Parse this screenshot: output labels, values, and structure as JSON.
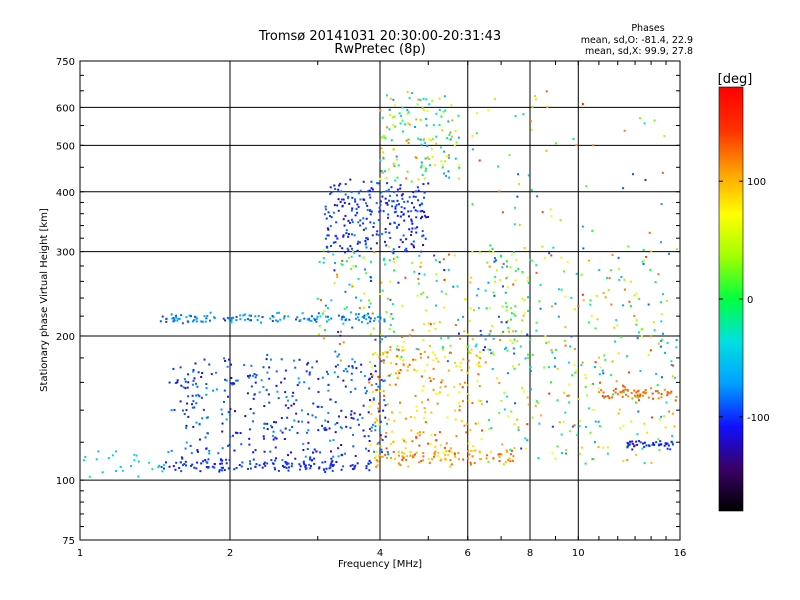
{
  "chart_data": {
    "type": "scatter",
    "title": "Tromsø 20141031 20:30:00-20:31:43",
    "subtitle": "RwPretec (8p)",
    "xlabel": "Frequency [MHz]",
    "ylabel": "Stationary phase Virtual Height [km]",
    "x_scale": "log",
    "y_scale": "log",
    "xlim": [
      1,
      16
    ],
    "ylim": [
      75,
      750
    ],
    "x_ticks": [
      1,
      2,
      4,
      6,
      8,
      10,
      16
    ],
    "y_ticks": [
      75,
      100,
      200,
      300,
      400,
      500,
      600,
      750
    ],
    "x_tick_labels": [
      "1",
      "2",
      "4",
      "6",
      "8",
      "10",
      "16"
    ],
    "y_tick_labels": [
      "75",
      "100",
      "200",
      "300",
      "400",
      "500",
      "600",
      "750"
    ],
    "grid": true,
    "phase_box": {
      "heading": "Phases",
      "line_o": "mean, sd,O: -81.4, 22.9",
      "line_x": "mean, sd,X:  99.9, 27.8"
    },
    "colorbar": {
      "label": "[deg]",
      "range": [
        -180,
        180
      ],
      "ticks": [
        100,
        0,
        -100
      ],
      "tick_labels": [
        "100",
        "0",
        "-100"
      ],
      "colors": [
        "#000000",
        "#3a0066",
        "#1010ff",
        "#00a0ff",
        "#00e0e0",
        "#00ff40",
        "#a0ff00",
        "#ffff00",
        "#ffa000",
        "#ff3000",
        "#ff0000"
      ]
    },
    "point_groups": [
      {
        "name": "o-trace-low",
        "x": [
          1.45,
          3.9
        ],
        "y": [
          105,
          110
        ],
        "phase": [
          -90,
          -110
        ],
        "n": 140,
        "jitter_y": 0.015
      },
      {
        "name": "o-trace-low-right",
        "x": [
          3.9,
          7.5
        ],
        "y": [
          108,
          115
        ],
        "phase": [
          90,
          140
        ],
        "n": 90,
        "jitter_y": 0.02
      },
      {
        "name": "low-tail",
        "x": [
          1.0,
          1.5
        ],
        "y": [
          103,
          115
        ],
        "phase": [
          -60,
          -30
        ],
        "n": 25,
        "jitter_y": 0.03
      },
      {
        "name": "e-spread",
        "x": [
          1.5,
          4.2
        ],
        "y": [
          110,
          180
        ],
        "phase": [
          -120,
          -70
        ],
        "n": 380,
        "jitter_y": 0.02
      },
      {
        "name": "e-spread-x",
        "x": [
          3.8,
          6.5
        ],
        "y": [
          110,
          190
        ],
        "phase": [
          60,
          140
        ],
        "n": 220,
        "jitter_y": 0.02
      },
      {
        "name": "f-line",
        "x": [
          1.45,
          4.1
        ],
        "y": [
          214,
          222
        ],
        "phase": [
          -100,
          -60
        ],
        "n": 130,
        "jitter_y": 0.01
      },
      {
        "name": "f-cluster",
        "x": [
          3.1,
          5.0
        ],
        "y": [
          300,
          420
        ],
        "phase": [
          -120,
          -80
        ],
        "n": 260,
        "jitter_y": 0.02
      },
      {
        "name": "f-upper",
        "x": [
          4.0,
          5.8
        ],
        "y": [
          420,
          640
        ],
        "phase": [
          -80,
          120
        ],
        "n": 150,
        "jitter_y": 0.02
      },
      {
        "name": "mid-spread",
        "x": [
          3.0,
          8.0
        ],
        "y": [
          180,
          300
        ],
        "phase": [
          -110,
          140
        ],
        "n": 260,
        "jitter_y": 0.03
      },
      {
        "name": "high-freq",
        "x": [
          6.5,
          15.8
        ],
        "y": [
          110,
          300
        ],
        "phase": [
          -100,
          150
        ],
        "n": 330,
        "jitter_y": 0.03
      },
      {
        "name": "x-trace-right",
        "x": [
          11.0,
          15.8
        ],
        "y": [
          147,
          155
        ],
        "phase": [
          110,
          140
        ],
        "n": 60,
        "jitter_y": 0.015
      },
      {
        "name": "o-trace-right",
        "x": [
          12.5,
          15.5
        ],
        "y": [
          117,
          120
        ],
        "phase": [
          -110,
          -90
        ],
        "n": 40,
        "jitter_y": 0.01
      },
      {
        "name": "sparse-upper",
        "x": [
          6.0,
          15.0
        ],
        "y": [
          300,
          650
        ],
        "phase": [
          -100,
          150
        ],
        "n": 60,
        "jitter_y": 0.02
      }
    ]
  }
}
